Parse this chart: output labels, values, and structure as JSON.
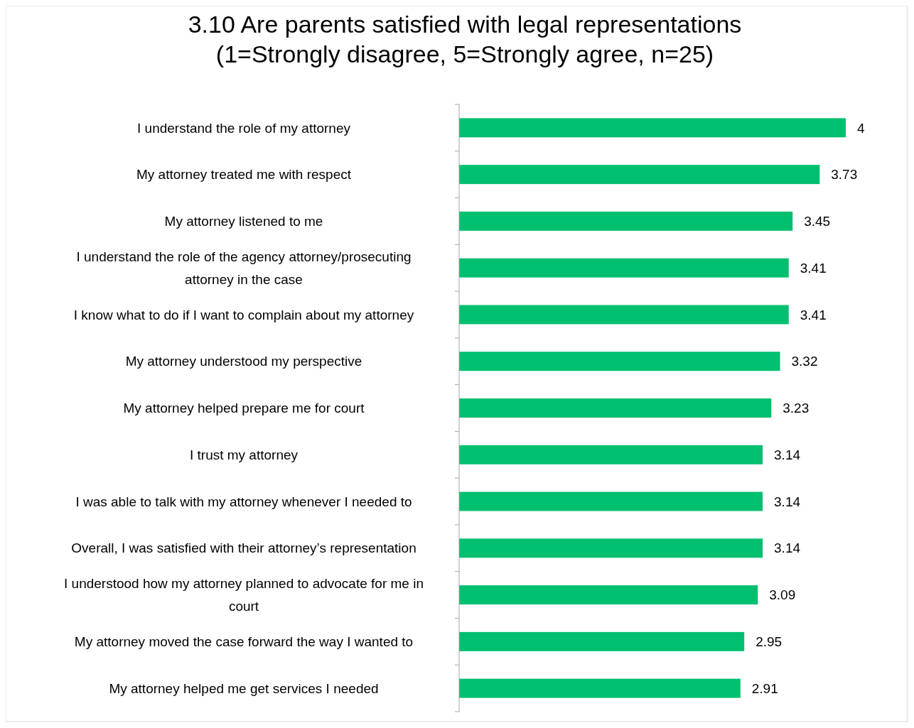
{
  "chart_data": {
    "type": "bar",
    "orientation": "horizontal",
    "title": "3.10 Are parents satisfied with legal representations\n(1=Strongly disagree, 5=Strongly agree, n=25)",
    "categories": [
      "I understand the role of my attorney",
      "My attorney treated me with respect",
      "My attorney listened to me",
      "I  understand the role of the agency attorney/prosecuting attorney in the case",
      "I know what to do if I want to complain about my attorney",
      "My attorney understood my perspective",
      "My attorney helped prepare me for court",
      "I trust my attorney",
      "I was able to talk with my attorney whenever I needed to",
      "Overall, I was satisfied with their attorney’s representation",
      "I understood how my attorney planned to advocate for me in court",
      "My attorney moved the case forward the way I wanted to",
      "My attorney helped me get services I needed"
    ],
    "values": [
      4,
      3.73,
      3.45,
      3.41,
      3.41,
      3.32,
      3.23,
      3.14,
      3.14,
      3.14,
      3.09,
      2.95,
      2.91
    ],
    "color": "#00bf6f",
    "data_labels": true,
    "tick_labels": "y"
  }
}
